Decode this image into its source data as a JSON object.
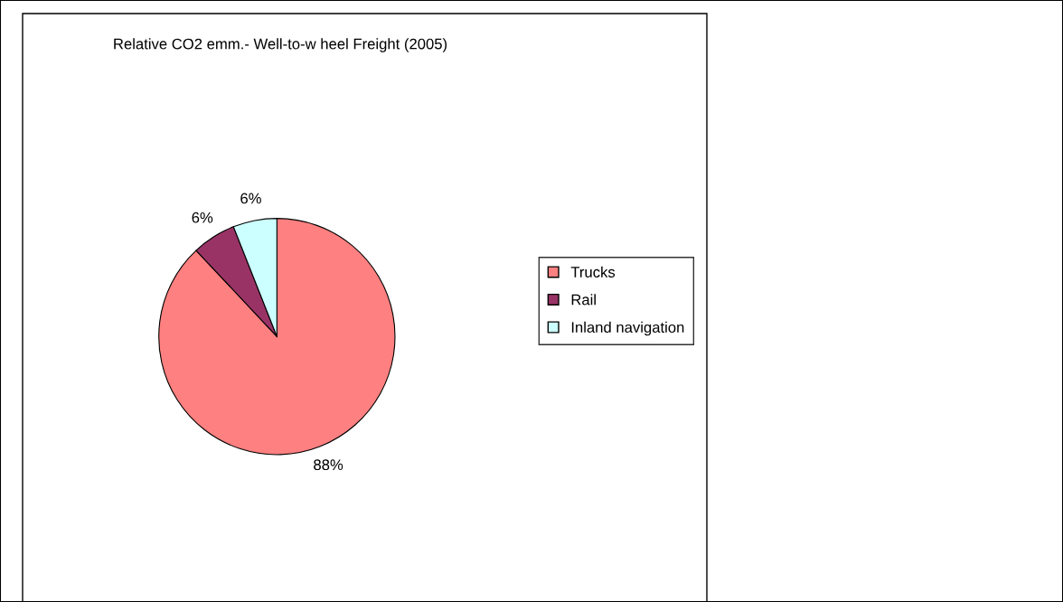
{
  "chart_data": {
    "type": "pie",
    "title": "Relative CO2 emm.- Well-to-w heel Freight (2005)",
    "categories": [
      "Trucks",
      "Rail",
      "Inland navigation"
    ],
    "values": [
      88,
      6,
      6
    ],
    "colors": [
      "#ff8080",
      "#993366",
      "#ccffff"
    ],
    "value_labels": [
      "88%",
      "6%",
      "6%"
    ],
    "legend": "right"
  }
}
